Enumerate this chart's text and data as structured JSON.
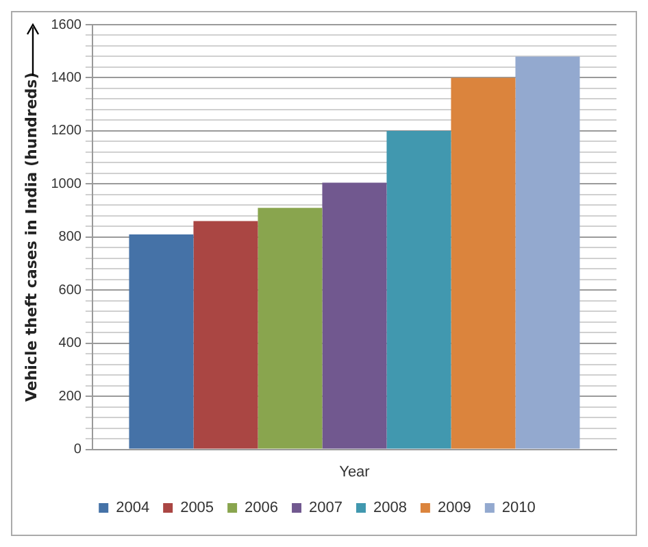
{
  "chart_data": {
    "type": "bar",
    "xlabel": "Year",
    "ylabel": "Vehicle theft cases in India (hundreds)",
    "categories": [
      null
    ],
    "series": [
      {
        "name": "2004",
        "color": "#4572a7",
        "values": [
          810
        ]
      },
      {
        "name": "2005",
        "color": "#aa4643",
        "values": [
          860
        ]
      },
      {
        "name": "2006",
        "color": "#89a54e",
        "values": [
          910
        ]
      },
      {
        "name": "2007",
        "color": "#71588f",
        "values": [
          1005
        ]
      },
      {
        "name": "2008",
        "color": "#4198af",
        "values": [
          1200
        ]
      },
      {
        "name": "2009",
        "color": "#db843d",
        "values": [
          1400
        ]
      },
      {
        "name": "2010",
        "color": "#93a9cf",
        "values": [
          1480
        ]
      }
    ],
    "ylim": [
      0,
      1600
    ],
    "yticks": [
      0,
      {
        "value": 40,
        "label": null
      },
      {
        "value": 80,
        "label": null
      },
      {
        "value": 120,
        "label": null
      },
      {
        "value": 160,
        "label": null
      },
      200,
      {
        "value": 240,
        "label": null
      },
      {
        "value": 280,
        "label": null
      },
      {
        "value": 320,
        "label": null
      },
      {
        "value": 360,
        "label": null
      },
      400,
      {
        "value": 440,
        "label": null
      },
      {
        "value": 480,
        "label": null
      },
      {
        "value": 520,
        "label": null
      },
      {
        "value": 560,
        "label": null
      },
      600,
      {
        "value": 640,
        "label": null
      },
      {
        "value": 680,
        "label": null
      },
      {
        "value": 720,
        "label": null
      },
      {
        "value": 760,
        "label": null
      },
      800,
      {
        "value": 840,
        "label": null
      },
      {
        "value": 880,
        "label": null
      },
      {
        "value": 920,
        "label": null
      },
      {
        "value": 960,
        "label": null
      },
      1000,
      {
        "value": 1040,
        "label": null
      },
      {
        "value": 1080,
        "label": null
      },
      {
        "value": 1120,
        "label": null
      },
      {
        "value": 1160,
        "label": null
      },
      1200,
      {
        "value": 1240,
        "label": null
      },
      {
        "value": 1280,
        "label": null
      },
      {
        "value": 1320,
        "label": null
      },
      {
        "value": 1360,
        "label": null
      },
      1400,
      {
        "value": 1440,
        "label": null
      },
      {
        "value": 1480,
        "label": null
      },
      {
        "value": 1520,
        "label": null
      },
      {
        "value": 1560,
        "label": null
      },
      1600
    ],
    "grid": "y",
    "legend": "bottom"
  }
}
